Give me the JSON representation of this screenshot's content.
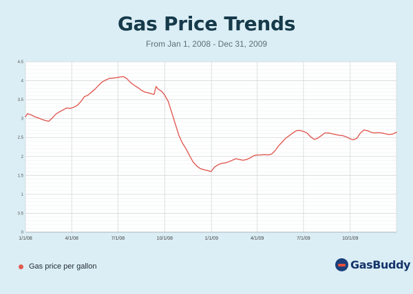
{
  "header": {
    "title": "Gas Price Trends",
    "subtitle": "From Jan 1, 2008 - Dec 31, 2009"
  },
  "legend": {
    "label": "Gas price per gallon",
    "color": "#e15a52"
  },
  "brand": {
    "name": "GasBuddy",
    "logo_icon": "gasbuddy-logo-icon"
  },
  "colors": {
    "background": "#dbeef5",
    "plot_background": "#ffffff",
    "line": "#e15a52",
    "grid": "#d3d8da",
    "title": "#163a4a"
  },
  "chart_data": {
    "type": "line",
    "title": "Gas Price Trends",
    "subtitle": "From Jan 1, 2008 - Dec 31, 2009",
    "xlabel": "",
    "ylabel": "",
    "ylim": [
      0,
      4.5
    ],
    "yticks": [
      0,
      0.5,
      1,
      1.5,
      2,
      2.5,
      3,
      3.5,
      4,
      4.5
    ],
    "ytick_labels": [
      "0",
      "0.5",
      "1",
      "1.5",
      "2",
      "2.5",
      "3",
      "3.5",
      "4",
      "4.5"
    ],
    "xlim": [
      "2008-01-01",
      "2009-12-31"
    ],
    "xticks": [
      "2008-01-01",
      "2008-04-01",
      "2008-07-01",
      "2008-10-01",
      "2009-01-01",
      "2009-04-01",
      "2009-07-01",
      "2009-10-01"
    ],
    "xtick_labels": [
      "1/1/08",
      "4/1/08",
      "7/1/08",
      "10/1/08",
      "1/1/09",
      "4/1/09",
      "7/1/09",
      "10/1/09"
    ],
    "grid": true,
    "legend_position": "bottom-left",
    "series": [
      {
        "name": "Gas price per gallon",
        "color": "#e15a52",
        "points": [
          [
            "2008-01-01",
            3.05
          ],
          [
            "2008-01-05",
            3.13
          ],
          [
            "2008-01-12",
            3.1
          ],
          [
            "2008-01-19",
            3.05
          ],
          [
            "2008-01-26",
            3.02
          ],
          [
            "2008-02-02",
            2.98
          ],
          [
            "2008-02-09",
            2.95
          ],
          [
            "2008-02-16",
            2.93
          ],
          [
            "2008-02-23",
            3.02
          ],
          [
            "2008-03-01",
            3.12
          ],
          [
            "2008-03-08",
            3.18
          ],
          [
            "2008-03-15",
            3.23
          ],
          [
            "2008-03-22",
            3.28
          ],
          [
            "2008-03-29",
            3.27
          ],
          [
            "2008-04-05",
            3.3
          ],
          [
            "2008-04-12",
            3.35
          ],
          [
            "2008-04-19",
            3.45
          ],
          [
            "2008-04-26",
            3.58
          ],
          [
            "2008-05-03",
            3.62
          ],
          [
            "2008-05-10",
            3.7
          ],
          [
            "2008-05-17",
            3.78
          ],
          [
            "2008-05-24",
            3.88
          ],
          [
            "2008-05-31",
            3.97
          ],
          [
            "2008-06-07",
            4.02
          ],
          [
            "2008-06-14",
            4.06
          ],
          [
            "2008-06-21",
            4.07
          ],
          [
            "2008-06-28",
            4.08
          ],
          [
            "2008-07-05",
            4.1
          ],
          [
            "2008-07-12",
            4.11
          ],
          [
            "2008-07-19",
            4.05
          ],
          [
            "2008-07-26",
            3.95
          ],
          [
            "2008-08-02",
            3.88
          ],
          [
            "2008-08-09",
            3.82
          ],
          [
            "2008-08-16",
            3.75
          ],
          [
            "2008-08-23",
            3.7
          ],
          [
            "2008-08-30",
            3.68
          ],
          [
            "2008-09-06",
            3.65
          ],
          [
            "2008-09-10",
            3.64
          ],
          [
            "2008-09-14",
            3.85
          ],
          [
            "2008-09-18",
            3.78
          ],
          [
            "2008-09-25",
            3.72
          ],
          [
            "2008-10-01",
            3.62
          ],
          [
            "2008-10-08",
            3.45
          ],
          [
            "2008-10-15",
            3.15
          ],
          [
            "2008-10-22",
            2.85
          ],
          [
            "2008-10-29",
            2.55
          ],
          [
            "2008-11-05",
            2.35
          ],
          [
            "2008-11-12",
            2.2
          ],
          [
            "2008-11-19",
            2.02
          ],
          [
            "2008-11-26",
            1.85
          ],
          [
            "2008-12-03",
            1.75
          ],
          [
            "2008-12-10",
            1.68
          ],
          [
            "2008-12-17",
            1.65
          ],
          [
            "2008-12-24",
            1.63
          ],
          [
            "2008-12-31",
            1.6
          ],
          [
            "2009-01-07",
            1.72
          ],
          [
            "2009-01-14",
            1.78
          ],
          [
            "2009-01-21",
            1.82
          ],
          [
            "2009-01-28",
            1.83
          ],
          [
            "2009-02-04",
            1.86
          ],
          [
            "2009-02-11",
            1.9
          ],
          [
            "2009-02-18",
            1.94
          ],
          [
            "2009-02-25",
            1.92
          ],
          [
            "2009-03-04",
            1.9
          ],
          [
            "2009-03-11",
            1.92
          ],
          [
            "2009-03-18",
            1.96
          ],
          [
            "2009-03-25",
            2.02
          ],
          [
            "2009-04-01",
            2.04
          ],
          [
            "2009-04-08",
            2.04
          ],
          [
            "2009-04-15",
            2.05
          ],
          [
            "2009-04-22",
            2.04
          ],
          [
            "2009-04-29",
            2.06
          ],
          [
            "2009-05-06",
            2.15
          ],
          [
            "2009-05-13",
            2.28
          ],
          [
            "2009-05-20",
            2.38
          ],
          [
            "2009-05-27",
            2.48
          ],
          [
            "2009-06-03",
            2.55
          ],
          [
            "2009-06-10",
            2.62
          ],
          [
            "2009-06-17",
            2.68
          ],
          [
            "2009-06-24",
            2.69
          ],
          [
            "2009-07-01",
            2.66
          ],
          [
            "2009-07-08",
            2.62
          ],
          [
            "2009-07-15",
            2.52
          ],
          [
            "2009-07-22",
            2.45
          ],
          [
            "2009-07-29",
            2.48
          ],
          [
            "2009-08-05",
            2.55
          ],
          [
            "2009-08-12",
            2.62
          ],
          [
            "2009-08-19",
            2.62
          ],
          [
            "2009-08-26",
            2.6
          ],
          [
            "2009-09-02",
            2.58
          ],
          [
            "2009-09-09",
            2.56
          ],
          [
            "2009-09-16",
            2.55
          ],
          [
            "2009-09-23",
            2.52
          ],
          [
            "2009-09-30",
            2.47
          ],
          [
            "2009-10-07",
            2.44
          ],
          [
            "2009-10-14",
            2.48
          ],
          [
            "2009-10-21",
            2.62
          ],
          [
            "2009-10-28",
            2.7
          ],
          [
            "2009-11-04",
            2.68
          ],
          [
            "2009-11-11",
            2.64
          ],
          [
            "2009-11-18",
            2.62
          ],
          [
            "2009-11-25",
            2.63
          ],
          [
            "2009-12-02",
            2.62
          ],
          [
            "2009-12-09",
            2.6
          ],
          [
            "2009-12-16",
            2.58
          ],
          [
            "2009-12-23",
            2.59
          ],
          [
            "2009-12-31",
            2.64
          ]
        ]
      }
    ]
  }
}
